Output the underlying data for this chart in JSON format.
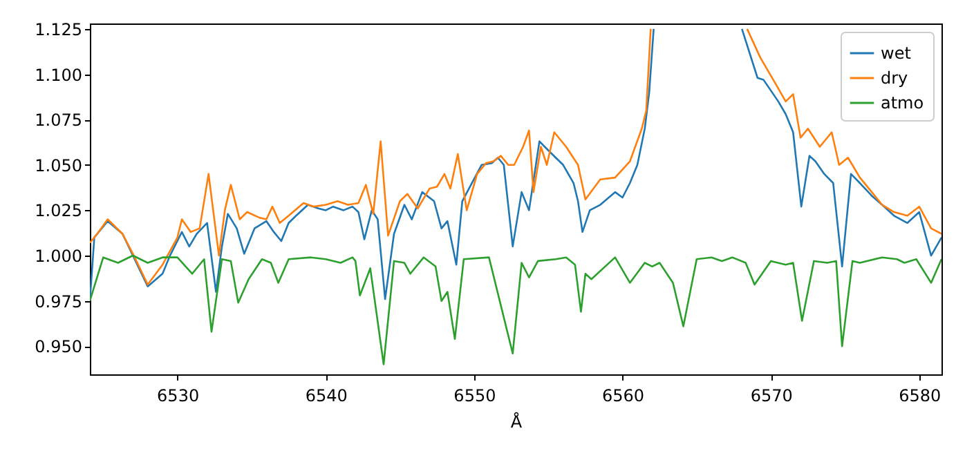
{
  "chart_data": {
    "type": "line",
    "xlabel": "Å",
    "xlim": [
      6524.1,
      6581.5
    ],
    "ylim": [
      0.9345,
      1.128
    ],
    "xticks": [
      6530,
      6540,
      6550,
      6560,
      6570,
      6580
    ],
    "yticks": [
      {
        "value": 0.95,
        "label": "0.950"
      },
      {
        "value": 0.975,
        "label": "0.975"
      },
      {
        "value": 1.0,
        "label": "1.000"
      },
      {
        "value": 1.025,
        "label": "1.025"
      },
      {
        "value": 1.05,
        "label": "1.050"
      },
      {
        "value": 1.075,
        "label": "1.075"
      },
      {
        "value": 1.1,
        "label": "1.100"
      },
      {
        "value": 1.125,
        "label": "1.125"
      }
    ],
    "legend": "top right",
    "grid": false,
    "marker": "none",
    "line_style": "solid",
    "series": [
      {
        "name": "wet",
        "color": "#1f77b4",
        "x": [
          6524.1,
          6524.4,
          6525.3,
          6526.3,
          6527,
          6528,
          6529,
          6529.5,
          6530.3,
          6530.8,
          6531.3,
          6532,
          6532.6,
          6533,
          6533.4,
          6534,
          6534.5,
          6535.2,
          6536,
          6536.5,
          6537,
          6537.5,
          6538,
          6538.8,
          6539.5,
          6540,
          6540.5,
          6541.2,
          6541.8,
          6542.2,
          6542.6,
          6543.1,
          6543.5,
          6544,
          6544.6,
          6545.3,
          6545.8,
          6546.5,
          6547.3,
          6547.8,
          6548.2,
          6548.8,
          6549.2,
          6550.5,
          6551.2,
          6551.6,
          6552,
          6552.6,
          6553.2,
          6553.7,
          6554.4,
          6555,
          6556,
          6556.7,
          6557,
          6557.3,
          6557.8,
          6558.5,
          6559.5,
          6560,
          6560.5,
          6561,
          6561.5,
          6561.8,
          6562.1,
          6565,
          6568.05,
          6569.1,
          6569.5,
          6570.5,
          6571,
          6571.5,
          6572.05,
          6572.6,
          6573,
          6573.6,
          6574.2,
          6574.8,
          6575.4,
          6576,
          6576.8,
          6577.5,
          6578.3,
          6579.2,
          6580,
          6580.8,
          6581.5
        ],
        "values": [
          0.975,
          1.01,
          1.019,
          1.012,
          1.0,
          0.983,
          0.99,
          1.0,
          1.013,
          1.005,
          1.012,
          1.018,
          0.98,
          1.005,
          1.023,
          1.015,
          1.001,
          1.015,
          1.019,
          1.013,
          1.008,
          1.018,
          1.022,
          1.028,
          1.026,
          1.025,
          1.027,
          1.025,
          1.027,
          1.024,
          1.009,
          1.025,
          1.02,
          0.976,
          1.012,
          1.028,
          1.02,
          1.035,
          1.03,
          1.015,
          1.019,
          0.995,
          1.03,
          1.05,
          1.051,
          1.054,
          1.05,
          1.005,
          1.035,
          1.025,
          1.063,
          1.058,
          1.05,
          1.04,
          1.03,
          1.013,
          1.025,
          1.028,
          1.035,
          1.032,
          1.04,
          1.05,
          1.07,
          1.09,
          1.125,
          null,
          1.125,
          1.098,
          1.097,
          1.085,
          1.078,
          1.068,
          1.027,
          1.055,
          1.052,
          1.045,
          1.04,
          0.994,
          1.045,
          1.04,
          1.033,
          1.028,
          1.022,
          1.018,
          1.024,
          1.0,
          1.01
        ]
      },
      {
        "name": "dry",
        "color": "#ff7f0e",
        "x": [
          6524.1,
          6524.6,
          6525.3,
          6526.3,
          6527,
          6528,
          6529,
          6530,
          6530.3,
          6530.9,
          6531.5,
          6532.1,
          6532.8,
          6533.2,
          6533.6,
          6534.2,
          6534.7,
          6535.5,
          6536,
          6536.4,
          6536.9,
          6537.5,
          6538.5,
          6539.2,
          6540,
          6540.8,
          6541.5,
          6542.2,
          6542.7,
          6543.2,
          6543.7,
          6544.2,
          6545,
          6545.5,
          6546.2,
          6547,
          6547.5,
          6548,
          6548.4,
          6548.9,
          6549.5,
          6550.2,
          6550.8,
          6551.3,
          6551.8,
          6552.3,
          6552.7,
          6553.3,
          6553.7,
          6554,
          6554.5,
          6554.9,
          6555.4,
          6556.2,
          6557,
          6557.5,
          6558.5,
          6559.5,
          6560.5,
          6561.3,
          6561.6,
          6561.9,
          6565,
          6568.4,
          6569.3,
          6570.3,
          6571,
          6571.5,
          6572,
          6572.5,
          6573.3,
          6574.1,
          6574.6,
          6575.2,
          6576,
          6576.8,
          6577.5,
          6578.3,
          6579.2,
          6580,
          6580.8,
          6581.5
        ],
        "values": [
          1.007,
          1.012,
          1.02,
          1.012,
          1.001,
          0.984,
          0.995,
          1.01,
          1.02,
          1.013,
          1.015,
          1.045,
          1.0,
          1.025,
          1.039,
          1.02,
          1.024,
          1.021,
          1.02,
          1.027,
          1.018,
          1.022,
          1.029,
          1.027,
          1.028,
          1.03,
          1.028,
          1.029,
          1.039,
          1.023,
          1.063,
          1.011,
          1.03,
          1.034,
          1.026,
          1.037,
          1.038,
          1.045,
          1.037,
          1.056,
          1.025,
          1.045,
          1.051,
          1.052,
          1.055,
          1.05,
          1.05,
          1.06,
          1.069,
          1.035,
          1.06,
          1.05,
          1.068,
          1.06,
          1.05,
          1.031,
          1.042,
          1.043,
          1.052,
          1.07,
          1.08,
          1.125,
          null,
          1.125,
          1.109,
          1.095,
          1.085,
          1.089,
          1.065,
          1.07,
          1.06,
          1.068,
          1.05,
          1.054,
          1.043,
          1.035,
          1.028,
          1.024,
          1.022,
          1.027,
          1.015,
          1.012
        ]
      },
      {
        "name": "atmo",
        "color": "#2ca02c",
        "x": [
          6524.1,
          6525,
          6526,
          6527,
          6528,
          6529,
          6530,
          6531,
          6531.8,
          6532.3,
          6533,
          6533.6,
          6534.1,
          6534.8,
          6535.7,
          6536.3,
          6536.8,
          6537.5,
          6539,
          6540,
          6541,
          6541.8,
          6542,
          6542.3,
          6543,
          6543.9,
          6544.6,
          6545.3,
          6545.7,
          6546.6,
          6547.4,
          6547.8,
          6548.2,
          6548.7,
          6549.3,
          6551,
          6552.6,
          6553.2,
          6553.7,
          6554.3,
          6555.5,
          6556.2,
          6556.8,
          6557.2,
          6557.5,
          6557.9,
          6559.5,
          6560.5,
          6561.5,
          6562,
          6562.5,
          6563.4,
          6564.1,
          6565,
          6566,
          6566.7,
          6567.4,
          6568.3,
          6568.9,
          6570,
          6571,
          6571.5,
          6572.1,
          6572.9,
          6573.8,
          6574.4,
          6574.8,
          6575.5,
          6576,
          6577.5,
          6578.5,
          6579,
          6579.8,
          6580.8,
          6581.5
        ],
        "values": [
          0.975,
          0.999,
          0.996,
          1.0,
          0.996,
          0.999,
          0.999,
          0.99,
          0.998,
          0.958,
          0.998,
          0.997,
          0.974,
          0.987,
          0.998,
          0.996,
          0.985,
          0.998,
          0.999,
          0.998,
          0.996,
          0.999,
          0.997,
          0.978,
          0.993,
          0.94,
          0.997,
          0.996,
          0.99,
          0.999,
          0.994,
          0.975,
          0.98,
          0.954,
          0.998,
          0.999,
          0.946,
          0.996,
          0.988,
          0.997,
          0.998,
          0.999,
          0.995,
          0.969,
          0.99,
          0.987,
          0.999,
          0.985,
          0.996,
          0.994,
          0.996,
          0.985,
          0.961,
          0.998,
          0.999,
          0.997,
          0.999,
          0.996,
          0.984,
          0.997,
          0.995,
          0.996,
          0.964,
          0.997,
          0.996,
          0.997,
          0.95,
          0.997,
          0.996,
          0.999,
          0.998,
          0.996,
          0.998,
          0.985,
          0.998
        ]
      }
    ]
  }
}
